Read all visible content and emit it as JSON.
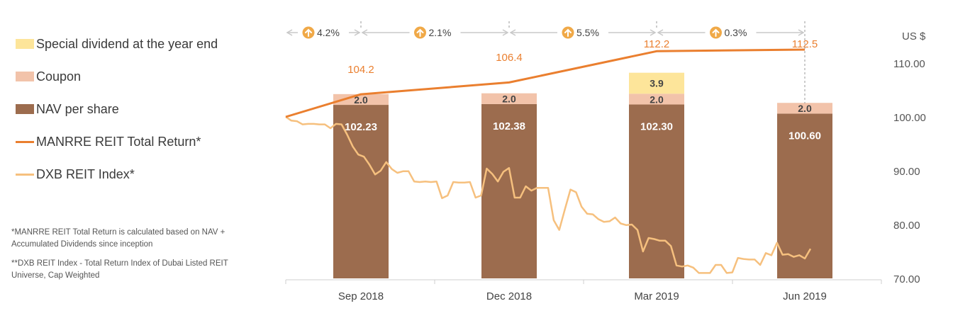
{
  "legend": {
    "items": [
      {
        "label": "Special dividend at the year end",
        "color": "#fde59a",
        "kind": "box"
      },
      {
        "label": "Coupon",
        "color": "#f2c3aa",
        "kind": "box"
      },
      {
        "label": "NAV per share",
        "color": "#9c6c4e",
        "kind": "box"
      },
      {
        "label": "MANRRE REIT Total Return*",
        "color": "#ea7f2f",
        "kind": "line"
      },
      {
        "label": "DXB REIT Index*",
        "color": "#f6c07e",
        "kind": "line"
      }
    ]
  },
  "notes": {
    "note1": "*MANRRE REIT Total Return is calculated based on NAV + Accumulated Dividends since inception",
    "note2": "**DXB REIT Index - Total Return Index of Dubai Listed REIT Universe, Cap Weighted"
  },
  "chart_data": {
    "type": "bar",
    "title": "",
    "ylabel": "US $",
    "xlabel": "",
    "ylim": [
      70,
      110
    ],
    "yticks": [
      "110.00",
      "100.00",
      "90.00",
      "80.00",
      "70.00"
    ],
    "categories": [
      "Sep 2018",
      "Dec 2018",
      "Mar 2019",
      "Jun 2019"
    ],
    "series": [
      {
        "name": "NAV per share",
        "values": [
          102.23,
          102.38,
          102.3,
          100.6
        ],
        "labels": [
          "102.23",
          "102.38",
          "102.30",
          "100.60"
        ],
        "color": "#9c6c4e"
      },
      {
        "name": "Coupon",
        "values": [
          2.0,
          2.0,
          2.0,
          2.0
        ],
        "labels": [
          "2.0",
          "2.0",
          "2.0",
          "2.0"
        ],
        "color": "#f2c3aa"
      },
      {
        "name": "Special dividend at the year end",
        "values": [
          0,
          0,
          3.9,
          0
        ],
        "labels": [
          "",
          "",
          "3.9",
          ""
        ],
        "color": "#fde59a"
      }
    ],
    "total_return": {
      "name": "MANRRE REIT Total Return*",
      "start": 100.0,
      "values": [
        104.2,
        106.4,
        112.2,
        112.5
      ],
      "labels": [
        "104.2",
        "106.4",
        "112.2",
        "112.5"
      ],
      "color": "#ea7f2f"
    },
    "growth": [
      {
        "label": "4.2%"
      },
      {
        "label": "2.1%"
      },
      {
        "label": "5.5%"
      },
      {
        "label": "0.3%"
      }
    ],
    "index_series": {
      "name": "DXB REIT Index*",
      "color": "#f6c07e",
      "values": [
        100.0,
        99.3,
        99.2,
        98.6,
        98.7,
        98.7,
        98.6,
        98.6,
        97.9,
        98.7,
        98.6,
        96.7,
        94.5,
        93.0,
        92.6,
        91.1,
        89.3,
        90.0,
        91.6,
        90.3,
        89.6,
        89.9,
        89.9,
        88.0,
        87.9,
        88.0,
        87.9,
        88.0,
        84.9,
        85.4,
        87.9,
        87.8,
        87.8,
        87.9,
        85.0,
        85.4,
        90.4,
        89.4,
        88.0,
        89.8,
        90.5,
        85.0,
        85.0,
        87.1,
        86.3,
        86.8,
        86.8,
        86.8,
        80.8,
        79.0,
        82.8,
        86.5,
        86.0,
        83.3,
        82.0,
        81.9,
        81.0,
        80.5,
        80.6,
        81.3,
        80.2,
        79.9,
        80.0,
        79.0,
        75.0,
        77.5,
        77.3,
        77.0,
        77.0,
        76.0,
        72.4,
        72.2,
        72.4,
        72.0,
        71.0,
        71.0,
        71.0,
        72.5,
        72.5,
        71.0,
        71.1,
        73.8,
        73.6,
        73.5,
        73.5,
        72.5,
        74.7,
        74.3,
        76.6,
        74.4,
        74.5,
        74.0,
        74.3,
        73.7,
        75.5
      ]
    }
  }
}
